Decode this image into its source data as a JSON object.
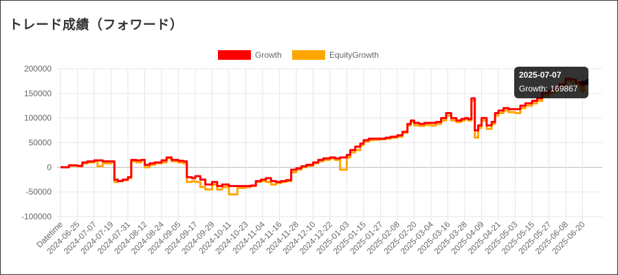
{
  "page": {
    "title": "トレード成績（フォワード）"
  },
  "chart_data": {
    "type": "line",
    "ylim": [
      -100000,
      200000
    ],
    "yticks": [
      200000,
      150000,
      100000,
      50000,
      0,
      -50000,
      -100000
    ],
    "xticks": [
      "Datetime",
      "2024-06-25",
      "2024-07-07",
      "2024-07-19",
      "2024-07-31",
      "2024-08-12",
      "2024-08-24",
      "2024-09-05",
      "2024-09-17",
      "2024-09-29",
      "2024-10-11",
      "2024-10-23",
      "2024-11-04",
      "2024-11-16",
      "2024-11-28",
      "2024-12-10",
      "2024-12-22",
      "2025-01-03",
      "2025-01-15",
      "2025-01-27",
      "2025-02-08",
      "2025-02-20",
      "2025-03-04",
      "2025-03-16",
      "2025-03-28",
      "2025-04-09",
      "2025-04-21",
      "2025-05-03",
      "2025-05-15",
      "2025-05-27",
      "2025-06-08",
      "2025-06-20"
    ],
    "grid": true,
    "legend": "top",
    "series": [
      {
        "name": "Growth",
        "color": "#ff0000",
        "points": [
          [
            0,
            0
          ],
          [
            0.3,
            0
          ],
          [
            0.5,
            4000
          ],
          [
            1,
            3000
          ],
          [
            1.3,
            10000
          ],
          [
            1.6,
            12000
          ],
          [
            2,
            14000
          ],
          [
            2.5,
            12000
          ],
          [
            3,
            12000
          ],
          [
            3.2,
            -25000
          ],
          [
            3.4,
            -28000
          ],
          [
            3.7,
            -25000
          ],
          [
            4,
            -20000
          ],
          [
            4.2,
            15000
          ],
          [
            4.5,
            14000
          ],
          [
            4.8,
            15000
          ],
          [
            5,
            5000
          ],
          [
            5.3,
            8000
          ],
          [
            5.6,
            10000
          ],
          [
            6,
            14000
          ],
          [
            6.3,
            20000
          ],
          [
            6.6,
            15000
          ],
          [
            7,
            13000
          ],
          [
            7.3,
            12000
          ],
          [
            7.5,
            -20000
          ],
          [
            7.8,
            -22000
          ],
          [
            8,
            -18000
          ],
          [
            8.3,
            -25000
          ],
          [
            8.6,
            -35000
          ],
          [
            9,
            -30000
          ],
          [
            9.3,
            -38000
          ],
          [
            9.6,
            -35000
          ],
          [
            10,
            -38000
          ],
          [
            10.5,
            -38000
          ],
          [
            11,
            -38000
          ],
          [
            11.3,
            -37000
          ],
          [
            11.6,
            -28000
          ],
          [
            11.9,
            -25000
          ],
          [
            12.2,
            -22000
          ],
          [
            12.5,
            -28000
          ],
          [
            12.8,
            -30000
          ],
          [
            13.1,
            -28000
          ],
          [
            13.4,
            -26000
          ],
          [
            13.7,
            -5000
          ],
          [
            14,
            -2000
          ],
          [
            14.3,
            2000
          ],
          [
            14.6,
            5000
          ],
          [
            15,
            10000
          ],
          [
            15.3,
            15000
          ],
          [
            15.6,
            18000
          ],
          [
            16,
            20000
          ],
          [
            16.3,
            18000
          ],
          [
            16.6,
            20000
          ],
          [
            17,
            25000
          ],
          [
            17.2,
            35000
          ],
          [
            17.5,
            42000
          ],
          [
            17.8,
            48000
          ],
          [
            18,
            55000
          ],
          [
            18.3,
            58000
          ],
          [
            18.6,
            58000
          ],
          [
            19,
            58000
          ],
          [
            19.3,
            60000
          ],
          [
            19.6,
            62000
          ],
          [
            20,
            65000
          ],
          [
            20.3,
            72000
          ],
          [
            20.6,
            88000
          ],
          [
            20.8,
            95000
          ],
          [
            21,
            90000
          ],
          [
            21.3,
            88000
          ],
          [
            21.6,
            90000
          ],
          [
            22,
            90000
          ],
          [
            22.3,
            92000
          ],
          [
            22.6,
            100000
          ],
          [
            22.9,
            110000
          ],
          [
            23.2,
            100000
          ],
          [
            23.5,
            95000
          ],
          [
            23.8,
            98000
          ],
          [
            24,
            100000
          ],
          [
            24.2,
            98000
          ],
          [
            24.4,
            140000
          ],
          [
            24.6,
            75000
          ],
          [
            24.8,
            85000
          ],
          [
            25,
            100000
          ],
          [
            25.3,
            85000
          ],
          [
            25.6,
            92000
          ],
          [
            25.8,
            110000
          ],
          [
            26,
            115000
          ],
          [
            26.3,
            120000
          ],
          [
            26.6,
            118000
          ],
          [
            27,
            118000
          ],
          [
            27.3,
            125000
          ],
          [
            27.6,
            130000
          ],
          [
            28,
            135000
          ],
          [
            28.3,
            140000
          ],
          [
            28.6,
            150000
          ],
          [
            29,
            155000
          ],
          [
            29.3,
            160000
          ],
          [
            29.6,
            168000
          ],
          [
            30,
            180000
          ],
          [
            30.3,
            178000
          ],
          [
            30.6,
            172000
          ],
          [
            31,
            169867
          ]
        ]
      },
      {
        "name": "EquityGrowth",
        "color": "#ffa500",
        "points": [
          [
            0,
            0
          ],
          [
            0.3,
            0
          ],
          [
            0.5,
            3000
          ],
          [
            1,
            2000
          ],
          [
            1.3,
            8000
          ],
          [
            1.6,
            10000
          ],
          [
            2,
            12000
          ],
          [
            2.2,
            2000
          ],
          [
            2.5,
            8000
          ],
          [
            3,
            10000
          ],
          [
            3.2,
            -30000
          ],
          [
            3.4,
            -28000
          ],
          [
            3.7,
            -26000
          ],
          [
            4,
            -22000
          ],
          [
            4.2,
            12000
          ],
          [
            4.5,
            10000
          ],
          [
            4.8,
            15000
          ],
          [
            5,
            0
          ],
          [
            5.3,
            5000
          ],
          [
            5.6,
            8000
          ],
          [
            6,
            10000
          ],
          [
            6.3,
            18000
          ],
          [
            6.6,
            12000
          ],
          [
            7,
            10000
          ],
          [
            7.3,
            8000
          ],
          [
            7.5,
            -30000
          ],
          [
            7.8,
            -28000
          ],
          [
            8,
            -30000
          ],
          [
            8.3,
            -40000
          ],
          [
            8.6,
            -45000
          ],
          [
            9,
            -35000
          ],
          [
            9.3,
            -45000
          ],
          [
            9.6,
            -40000
          ],
          [
            10,
            -55000
          ],
          [
            10.5,
            -42000
          ],
          [
            11,
            -40000
          ],
          [
            11.3,
            -38000
          ],
          [
            11.6,
            -30000
          ],
          [
            11.9,
            -28000
          ],
          [
            12.2,
            -30000
          ],
          [
            12.5,
            -35000
          ],
          [
            12.8,
            -32000
          ],
          [
            13.1,
            -30000
          ],
          [
            13.4,
            -28000
          ],
          [
            13.7,
            -10000
          ],
          [
            14,
            -5000
          ],
          [
            14.3,
            0
          ],
          [
            14.6,
            3000
          ],
          [
            15,
            8000
          ],
          [
            15.3,
            12000
          ],
          [
            15.6,
            15000
          ],
          [
            16,
            18000
          ],
          [
            16.3,
            15000
          ],
          [
            16.6,
            -5000
          ],
          [
            17,
            20000
          ],
          [
            17.2,
            30000
          ],
          [
            17.5,
            35000
          ],
          [
            17.8,
            45000
          ],
          [
            18,
            52000
          ],
          [
            18.3,
            55000
          ],
          [
            18.6,
            56000
          ],
          [
            19,
            57000
          ],
          [
            19.3,
            58000
          ],
          [
            19.6,
            60000
          ],
          [
            20,
            62000
          ],
          [
            20.3,
            70000
          ],
          [
            20.6,
            85000
          ],
          [
            20.8,
            92000
          ],
          [
            21,
            85000
          ],
          [
            21.3,
            84000
          ],
          [
            21.6,
            86000
          ],
          [
            22,
            85000
          ],
          [
            22.3,
            88000
          ],
          [
            22.6,
            95000
          ],
          [
            22.9,
            105000
          ],
          [
            23.2,
            95000
          ],
          [
            23.5,
            92000
          ],
          [
            23.8,
            95000
          ],
          [
            24,
            98000
          ],
          [
            24.2,
            95000
          ],
          [
            24.4,
            135000
          ],
          [
            24.6,
            60000
          ],
          [
            24.8,
            80000
          ],
          [
            25,
            95000
          ],
          [
            25.3,
            78000
          ],
          [
            25.6,
            88000
          ],
          [
            25.8,
            105000
          ],
          [
            26,
            110000
          ],
          [
            26.3,
            115000
          ],
          [
            26.6,
            112000
          ],
          [
            27,
            110000
          ],
          [
            27.3,
            120000
          ],
          [
            27.6,
            125000
          ],
          [
            28,
            130000
          ],
          [
            28.3,
            135000
          ],
          [
            28.6,
            145000
          ],
          [
            29,
            150000
          ],
          [
            29.3,
            155000
          ],
          [
            29.6,
            162000
          ],
          [
            30,
            175000
          ],
          [
            30.3,
            172000
          ],
          [
            30.6,
            165000
          ],
          [
            31,
            158000
          ]
        ]
      }
    ],
    "tooltip": {
      "title": "2025-07-07",
      "label": "Growth: 169867"
    }
  }
}
